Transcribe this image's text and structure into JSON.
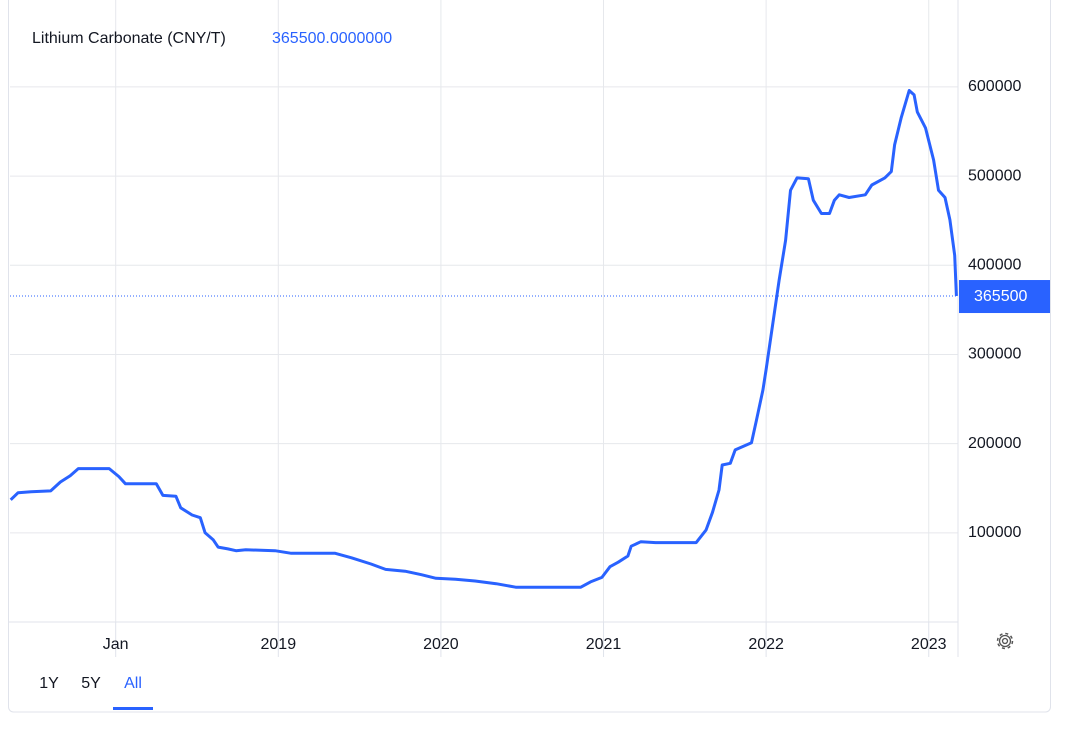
{
  "chart_data": {
    "type": "line",
    "title": "Lithium Carbonate (CNY/T)",
    "last_price": 365500,
    "last_price_label": "365500.0000000",
    "range_buttons": [
      "1Y",
      "5Y",
      "All"
    ],
    "active_range": "All",
    "xlim": [
      2017.35,
      2023.18
    ],
    "xticks": [
      {
        "value": 2018,
        "label": "Jan"
      },
      2019,
      2020,
      2021,
      2022,
      2023
    ],
    "ylim": [
      0,
      675000
    ],
    "yticks": [
      100000,
      200000,
      300000,
      400000,
      500000,
      600000
    ],
    "grid": true,
    "series": [
      {
        "name": "Lithium Carbonate",
        "color": "#2962ff",
        "x": [
          2017.354,
          2017.4,
          2017.48,
          2017.6,
          2017.66,
          2017.72,
          2017.77,
          2017.96,
          2018.02,
          2018.06,
          2018.25,
          2018.29,
          2018.37,
          2018.4,
          2018.47,
          2018.52,
          2018.55,
          2018.6,
          2018.63,
          2018.69,
          2018.74,
          2018.8,
          2018.98,
          2019.08,
          2019.14,
          2019.35,
          2019.45,
          2019.57,
          2019.66,
          2019.78,
          2019.88,
          2019.97,
          2020.09,
          2020.21,
          2020.34,
          2020.46,
          2020.61,
          2020.86,
          2020.92,
          2020.99,
          2021.04,
          2021.09,
          2021.15,
          2021.17,
          2021.23,
          2021.32,
          2021.57,
          2021.63,
          2021.67,
          2021.71,
          2021.73,
          2021.78,
          2021.81,
          2021.91,
          2021.94,
          2021.98,
          2022.0,
          2022.04,
          2022.08,
          2022.12,
          2022.15,
          2022.19,
          2022.26,
          2022.29,
          2022.34,
          2022.39,
          2022.42,
          2022.45,
          2022.51,
          2022.61,
          2022.65,
          2022.73,
          2022.77,
          2022.79,
          2022.83,
          2022.88,
          2022.91,
          2022.93,
          2022.98,
          2023.03,
          2023.06,
          2023.1,
          2023.13,
          2023.16,
          2023.17
        ],
        "values": [
          137000,
          145000,
          146000,
          147000,
          157000,
          164000,
          172000,
          172000,
          163000,
          155000,
          155000,
          142000,
          141000,
          128000,
          120000,
          117000,
          100000,
          92000,
          84000,
          82000,
          80000,
          81000,
          80000,
          77000,
          77000,
          77000,
          72000,
          65000,
          59000,
          57000,
          53000,
          49000,
          48000,
          46000,
          43000,
          39000,
          39000,
          39000,
          45000,
          50000,
          62000,
          67000,
          74000,
          85000,
          90000,
          89000,
          89000,
          103000,
          123000,
          148000,
          176000,
          178000,
          193000,
          201000,
          226000,
          260000,
          283000,
          333000,
          383000,
          428000,
          484000,
          498000,
          497000,
          473000,
          458000,
          458000,
          473000,
          479000,
          476000,
          479000,
          490000,
          498000,
          505000,
          535000,
          565000,
          596000,
          591000,
          572000,
          554000,
          518000,
          484000,
          476000,
          451000,
          411000,
          365500
        ]
      }
    ]
  }
}
